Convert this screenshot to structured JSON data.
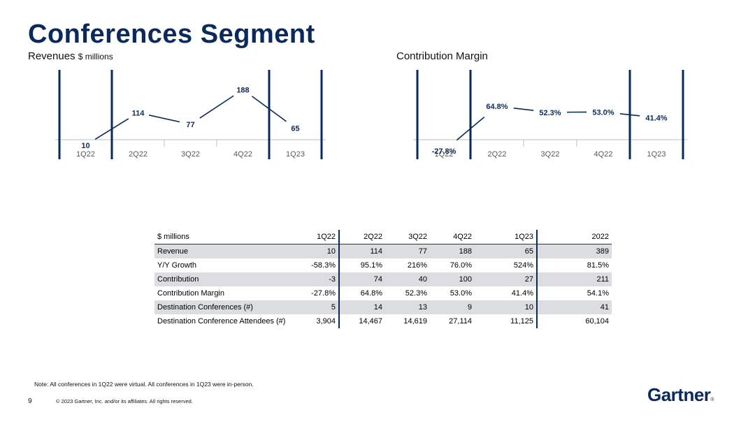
{
  "page": {
    "title": "Conferences Segment",
    "number": "9",
    "note": "Note: All conferences in 1Q22 were virtual. All conferences in 1Q23 were in-person.",
    "copyright": "© 2023 Gartner, Inc. and/or its affiliates. All rights reserved.",
    "logo": "Gartner",
    "logo_mark": "®"
  },
  "colors": {
    "brand": "#0b2a5c",
    "line": "#0b2a5c",
    "axis": "#bfbfbf",
    "tick_text": "#595959"
  },
  "chart_data": [
    {
      "type": "line",
      "title": "Revenues",
      "title_unit": "$ millions",
      "categories": [
        "1Q22",
        "2Q22",
        "3Q22",
        "4Q22",
        "1Q23"
      ],
      "values": [
        10,
        114,
        77,
        188,
        65
      ],
      "value_labels": [
        "10",
        "114",
        "77",
        "188",
        "65"
      ],
      "ylim": [
        -120,
        220
      ],
      "legend": "none"
    },
    {
      "type": "line",
      "title": "Contribution Margin",
      "categories": [
        "1Q22",
        "2Q22",
        "3Q22",
        "4Q22",
        "1Q23"
      ],
      "values": [
        -27.8,
        64.8,
        52.3,
        53.0,
        41.4
      ],
      "value_labels": [
        "-27.8%",
        "64.8%",
        "52.3%",
        "53.0%",
        "41.4%"
      ],
      "ylim": [
        -100,
        120
      ],
      "legend": "none"
    }
  ],
  "table": {
    "columns": [
      "$ millions",
      "1Q22",
      "2Q22",
      "3Q22",
      "4Q22",
      "1Q23",
      "2022"
    ],
    "rows": [
      {
        "label": "Revenue",
        "values": [
          "10",
          "114",
          "77",
          "188",
          "65",
          "389"
        ]
      },
      {
        "label": "Y/Y Growth",
        "values": [
          "-58.3%",
          "95.1%",
          "216%",
          "76.0%",
          "524%",
          "81.5%"
        ]
      },
      {
        "label": "Contribution",
        "values": [
          "-3",
          "74",
          "40",
          "100",
          "27",
          "211"
        ]
      },
      {
        "label": "Contribution Margin",
        "values": [
          "-27.8%",
          "64.8%",
          "52.3%",
          "53.0%",
          "41.4%",
          "54.1%"
        ]
      },
      {
        "label": "Destination Conferences (#)",
        "values": [
          "5",
          "14",
          "13",
          "9",
          "10",
          "41"
        ]
      },
      {
        "label": "Destination Conference Attendees (#)",
        "values": [
          "3,904",
          "14,467",
          "14,619",
          "27,114",
          "11,125",
          "60,104"
        ]
      }
    ]
  }
}
